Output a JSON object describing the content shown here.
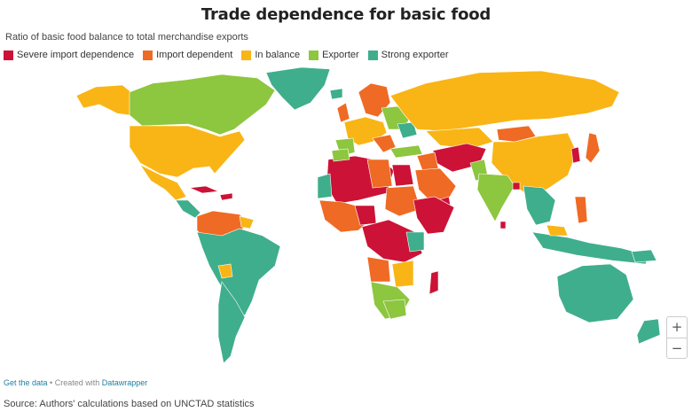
{
  "title": "Trade dependence for basic food",
  "subtitle": "Ratio of basic food balance to total merchandise exports",
  "legend": [
    {
      "label": "Severe import dependence",
      "color": "#cc1236"
    },
    {
      "label": "Import dependent",
      "color": "#ef6a24"
    },
    {
      "label": "In balance",
      "color": "#f9b516"
    },
    {
      "label": "Exporter",
      "color": "#8dc63f"
    },
    {
      "label": "Strong exporter",
      "color": "#3fae8c"
    }
  ],
  "zoom": {
    "in_label": "+",
    "out_label": "−"
  },
  "footer": {
    "get_data": "Get the data",
    "separator": " • Created with ",
    "tool": "Datawrapper"
  },
  "source": "Source: Authors' calculations based on UNCTAD statistics"
}
